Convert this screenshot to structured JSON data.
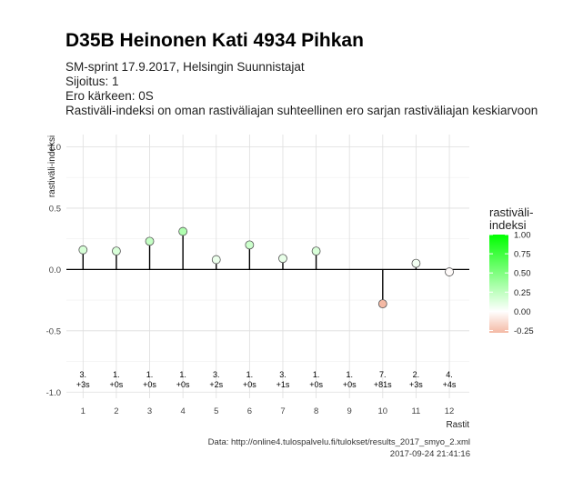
{
  "header": {
    "title": "D35B Heinonen Kati 4934 Pihkan",
    "subtitle_lines": [
      "SM-sprint 17.9.2017, Helsingin Suunnistajat",
      "Sijoitus: 1",
      "Ero kärkeen: 0S",
      "Rastiväli-indeksi on oman rastiväliajan suhteellinen ero sarjan rastiväliajan keskiarvoon"
    ]
  },
  "caption": {
    "source": "Data: http://online4.tulospalvelu.fi/tulokset/results_2017_smyo_2.xml",
    "timestamp": "2017-09-24 21:41:16"
  },
  "chart_data": {
    "type": "scatter",
    "style": "lollipop",
    "xlabel": "Rastit",
    "ylabel": "rastiväli-indeksi",
    "x": [
      1,
      2,
      3,
      4,
      5,
      6,
      7,
      8,
      9,
      10,
      11,
      12
    ],
    "xticks": [
      "1",
      "2",
      "3",
      "4",
      "5",
      "6",
      "7",
      "8",
      "9",
      "10",
      "11",
      "12"
    ],
    "y": [
      0.16,
      0.15,
      0.23,
      0.31,
      0.08,
      0.2,
      0.09,
      0.15,
      null,
      -0.28,
      0.05,
      -0.02
    ],
    "ylim": [
      -1.05,
      1.1
    ],
    "yticks": [
      -1.0,
      -0.5,
      0.0,
      0.5,
      1.0
    ],
    "ytick_labels": [
      "-1.0",
      "-0.5",
      "0.0",
      "0.5",
      "1.0"
    ],
    "point_labels": [
      [
        "3.",
        "+3s"
      ],
      [
        "1.",
        "+0s"
      ],
      [
        "1.",
        "+0s"
      ],
      [
        "1.",
        "+0s"
      ],
      [
        "3.",
        "+2s"
      ],
      [
        "1.",
        "+0s"
      ],
      [
        "3.",
        "+1s"
      ],
      [
        "1.",
        "+0s"
      ],
      [
        "1.",
        "+0s"
      ],
      [
        "7.",
        "+81s"
      ],
      [
        "2.",
        "+3s"
      ],
      [
        "4.",
        "+4s"
      ]
    ],
    "grid": true,
    "legend": {
      "title_lines": [
        "rastiväli-",
        "indeksi"
      ],
      "placement": "right",
      "ticks": [
        1.0,
        0.75,
        0.5,
        0.25,
        0.0,
        -0.25
      ],
      "tick_labels": [
        "1.00",
        "0.75",
        "0.50",
        "0.25",
        "0.00",
        "-0.25"
      ],
      "range": [
        -0.28,
        1.0
      ]
    },
    "colors": {
      "high": "#00ff00",
      "mid": "#ffffff",
      "low": "#f4b9a4",
      "grid_major": "#dedede",
      "grid_minor": "#efefef",
      "axis_line": "#000000",
      "point_stroke": "#555555"
    }
  }
}
